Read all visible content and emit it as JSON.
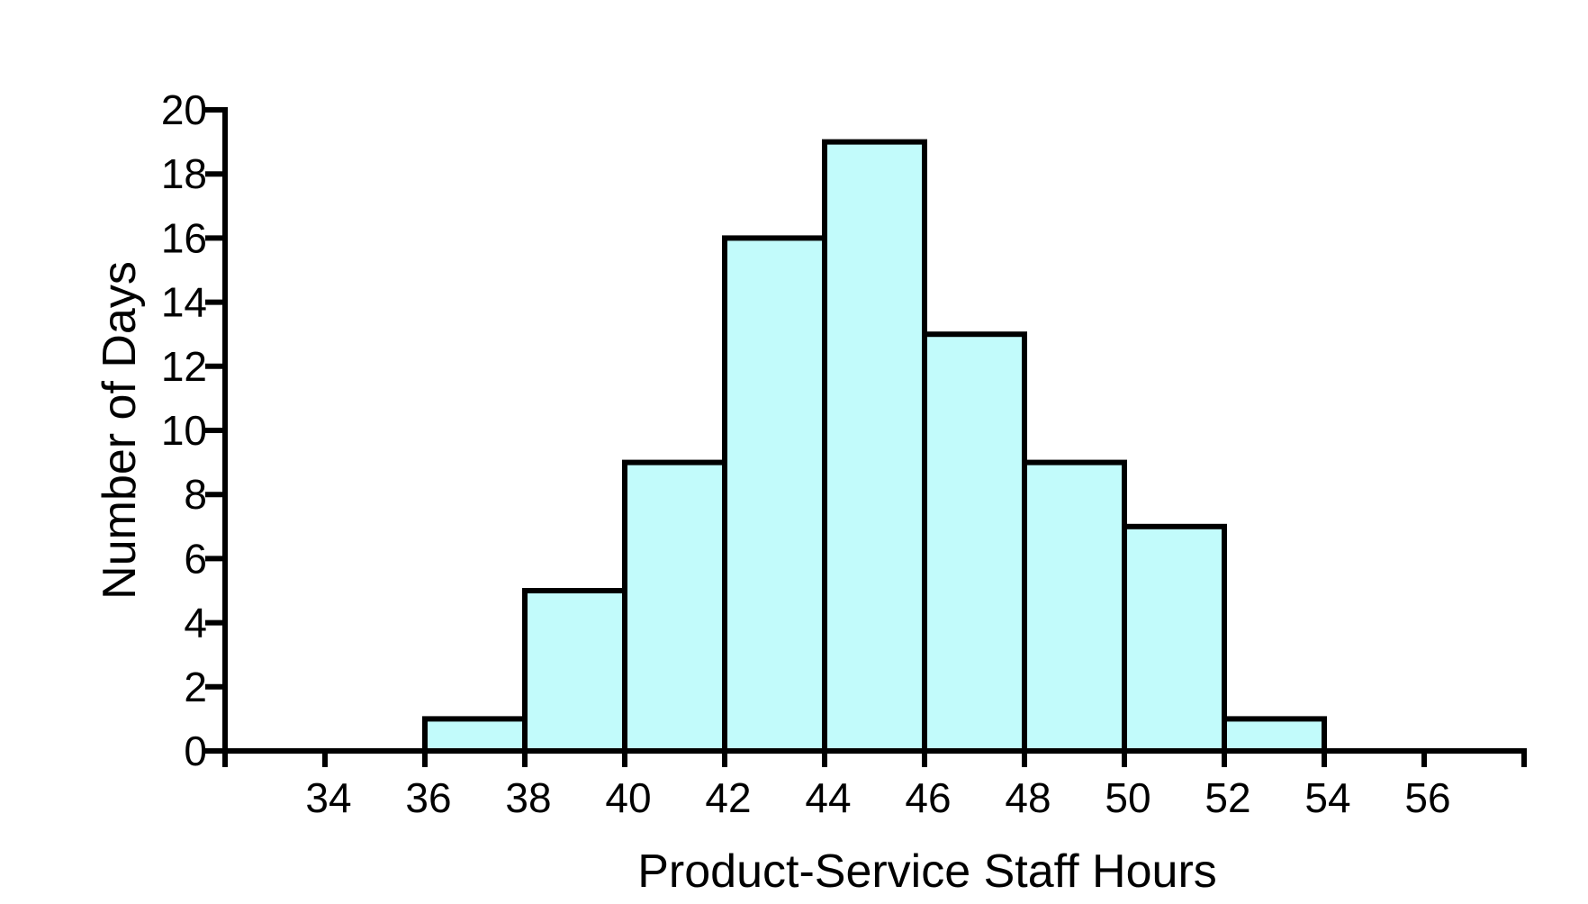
{
  "chart_data": {
    "type": "bar",
    "title": "",
    "xlabel": "Product-Service Staff Hours",
    "ylabel": "Number of Days",
    "bins": [
      {
        "start": 36,
        "end": 38,
        "value": 1
      },
      {
        "start": 38,
        "end": 40,
        "value": 5
      },
      {
        "start": 40,
        "end": 42,
        "value": 9
      },
      {
        "start": 42,
        "end": 44,
        "value": 16
      },
      {
        "start": 44,
        "end": 46,
        "value": 19
      },
      {
        "start": 46,
        "end": 48,
        "value": 13
      },
      {
        "start": 48,
        "end": 50,
        "value": 9
      },
      {
        "start": 50,
        "end": 52,
        "value": 7
      },
      {
        "start": 52,
        "end": 54,
        "value": 1
      }
    ],
    "xlim": [
      32,
      58
    ],
    "ylim": [
      0,
      20
    ],
    "x_ticks": [
      "34",
      "36",
      "38",
      "40",
      "42",
      "44",
      "46",
      "48",
      "50",
      "52",
      "54",
      "56"
    ],
    "y_ticks": [
      "0",
      "2",
      "4",
      "6",
      "8",
      "10",
      "12",
      "14",
      "16",
      "18",
      "20"
    ],
    "grid": false,
    "bar_color": "#c2fbfb",
    "edge_color": "#000000"
  }
}
